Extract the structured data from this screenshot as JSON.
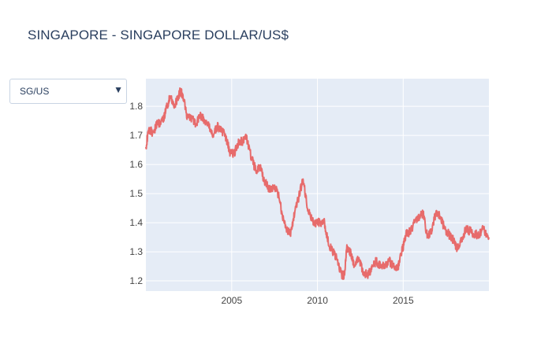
{
  "title": "SINGAPORE - SINGAPORE DOLLAR/US$",
  "dropdown": {
    "selected": "SG/US",
    "arrow_icon": "triangle-down-icon"
  },
  "colors": {
    "line": "#e76b6b",
    "plot_bg": "#e5ecf6",
    "grid": "#ffffff",
    "title": "#2a3f5f"
  },
  "chart_data": {
    "type": "line",
    "title": "SINGAPORE - SINGAPORE DOLLAR/US$",
    "xlabel": "",
    "ylabel": "",
    "xlim": [
      "2000-01-01",
      "2019-12-31"
    ],
    "ylim": [
      1.165,
      1.895
    ],
    "x_ticks": [
      "2005",
      "2010",
      "2015"
    ],
    "y_ticks": [
      1.2,
      1.3,
      1.4,
      1.5,
      1.6,
      1.7,
      1.8
    ],
    "grid": true,
    "legend": "none",
    "series": [
      {
        "x": [
          "2000-01-01",
          "2000-03-01",
          "2000-06-01",
          "2000-09-01",
          "2001-01-01",
          "2001-03-01",
          "2001-06-01",
          "2001-09-01",
          "2001-12-01",
          "2002-01-01",
          "2002-03-01",
          "2002-06-01",
          "2002-09-01",
          "2002-12-01",
          "2003-03-01",
          "2003-06-01",
          "2003-09-01",
          "2003-12-01",
          "2004-03-01",
          "2004-06-01",
          "2004-09-01",
          "2004-12-01",
          "2005-03-01",
          "2005-06-01",
          "2005-09-01",
          "2005-11-01",
          "2006-03-01",
          "2006-06-01",
          "2006-09-01",
          "2006-12-01",
          "2007-03-01",
          "2007-06-01",
          "2007-09-01",
          "2007-12-01",
          "2008-03-01",
          "2008-06-01",
          "2008-09-01",
          "2008-12-01",
          "2009-03-01",
          "2009-06-01",
          "2009-09-01",
          "2009-12-01",
          "2010-03-01",
          "2010-06-01",
          "2010-09-01",
          "2010-12-01",
          "2011-03-01",
          "2011-06-01",
          "2011-08-01",
          "2011-09-15",
          "2011-12-01",
          "2012-03-01",
          "2012-06-01",
          "2012-09-01",
          "2012-12-01",
          "2013-03-01",
          "2013-06-01",
          "2013-09-01",
          "2013-12-01",
          "2014-03-01",
          "2014-06-01",
          "2014-09-01",
          "2014-12-01",
          "2015-03-01",
          "2015-06-01",
          "2015-09-01",
          "2015-12-01",
          "2016-03-01",
          "2016-06-01",
          "2016-09-01",
          "2016-12-01",
          "2017-03-01",
          "2017-06-01",
          "2017-09-01",
          "2017-12-01",
          "2018-03-01",
          "2018-06-01",
          "2018-09-01",
          "2018-12-01",
          "2019-03-01",
          "2019-06-01",
          "2019-09-01",
          "2019-12-31"
        ],
        "values": [
          1.66,
          1.72,
          1.71,
          1.74,
          1.75,
          1.79,
          1.83,
          1.8,
          1.84,
          1.85,
          1.84,
          1.76,
          1.76,
          1.74,
          1.77,
          1.75,
          1.73,
          1.7,
          1.73,
          1.72,
          1.69,
          1.64,
          1.64,
          1.68,
          1.68,
          1.7,
          1.62,
          1.58,
          1.59,
          1.54,
          1.52,
          1.52,
          1.51,
          1.44,
          1.38,
          1.36,
          1.43,
          1.49,
          1.55,
          1.45,
          1.41,
          1.4,
          1.4,
          1.4,
          1.32,
          1.3,
          1.27,
          1.22,
          1.22,
          1.31,
          1.3,
          1.25,
          1.28,
          1.23,
          1.22,
          1.24,
          1.27,
          1.25,
          1.25,
          1.27,
          1.25,
          1.24,
          1.3,
          1.36,
          1.37,
          1.4,
          1.42,
          1.43,
          1.35,
          1.37,
          1.44,
          1.42,
          1.38,
          1.36,
          1.34,
          1.31,
          1.34,
          1.38,
          1.37,
          1.36,
          1.36,
          1.38,
          1.35
        ]
      }
    ]
  }
}
